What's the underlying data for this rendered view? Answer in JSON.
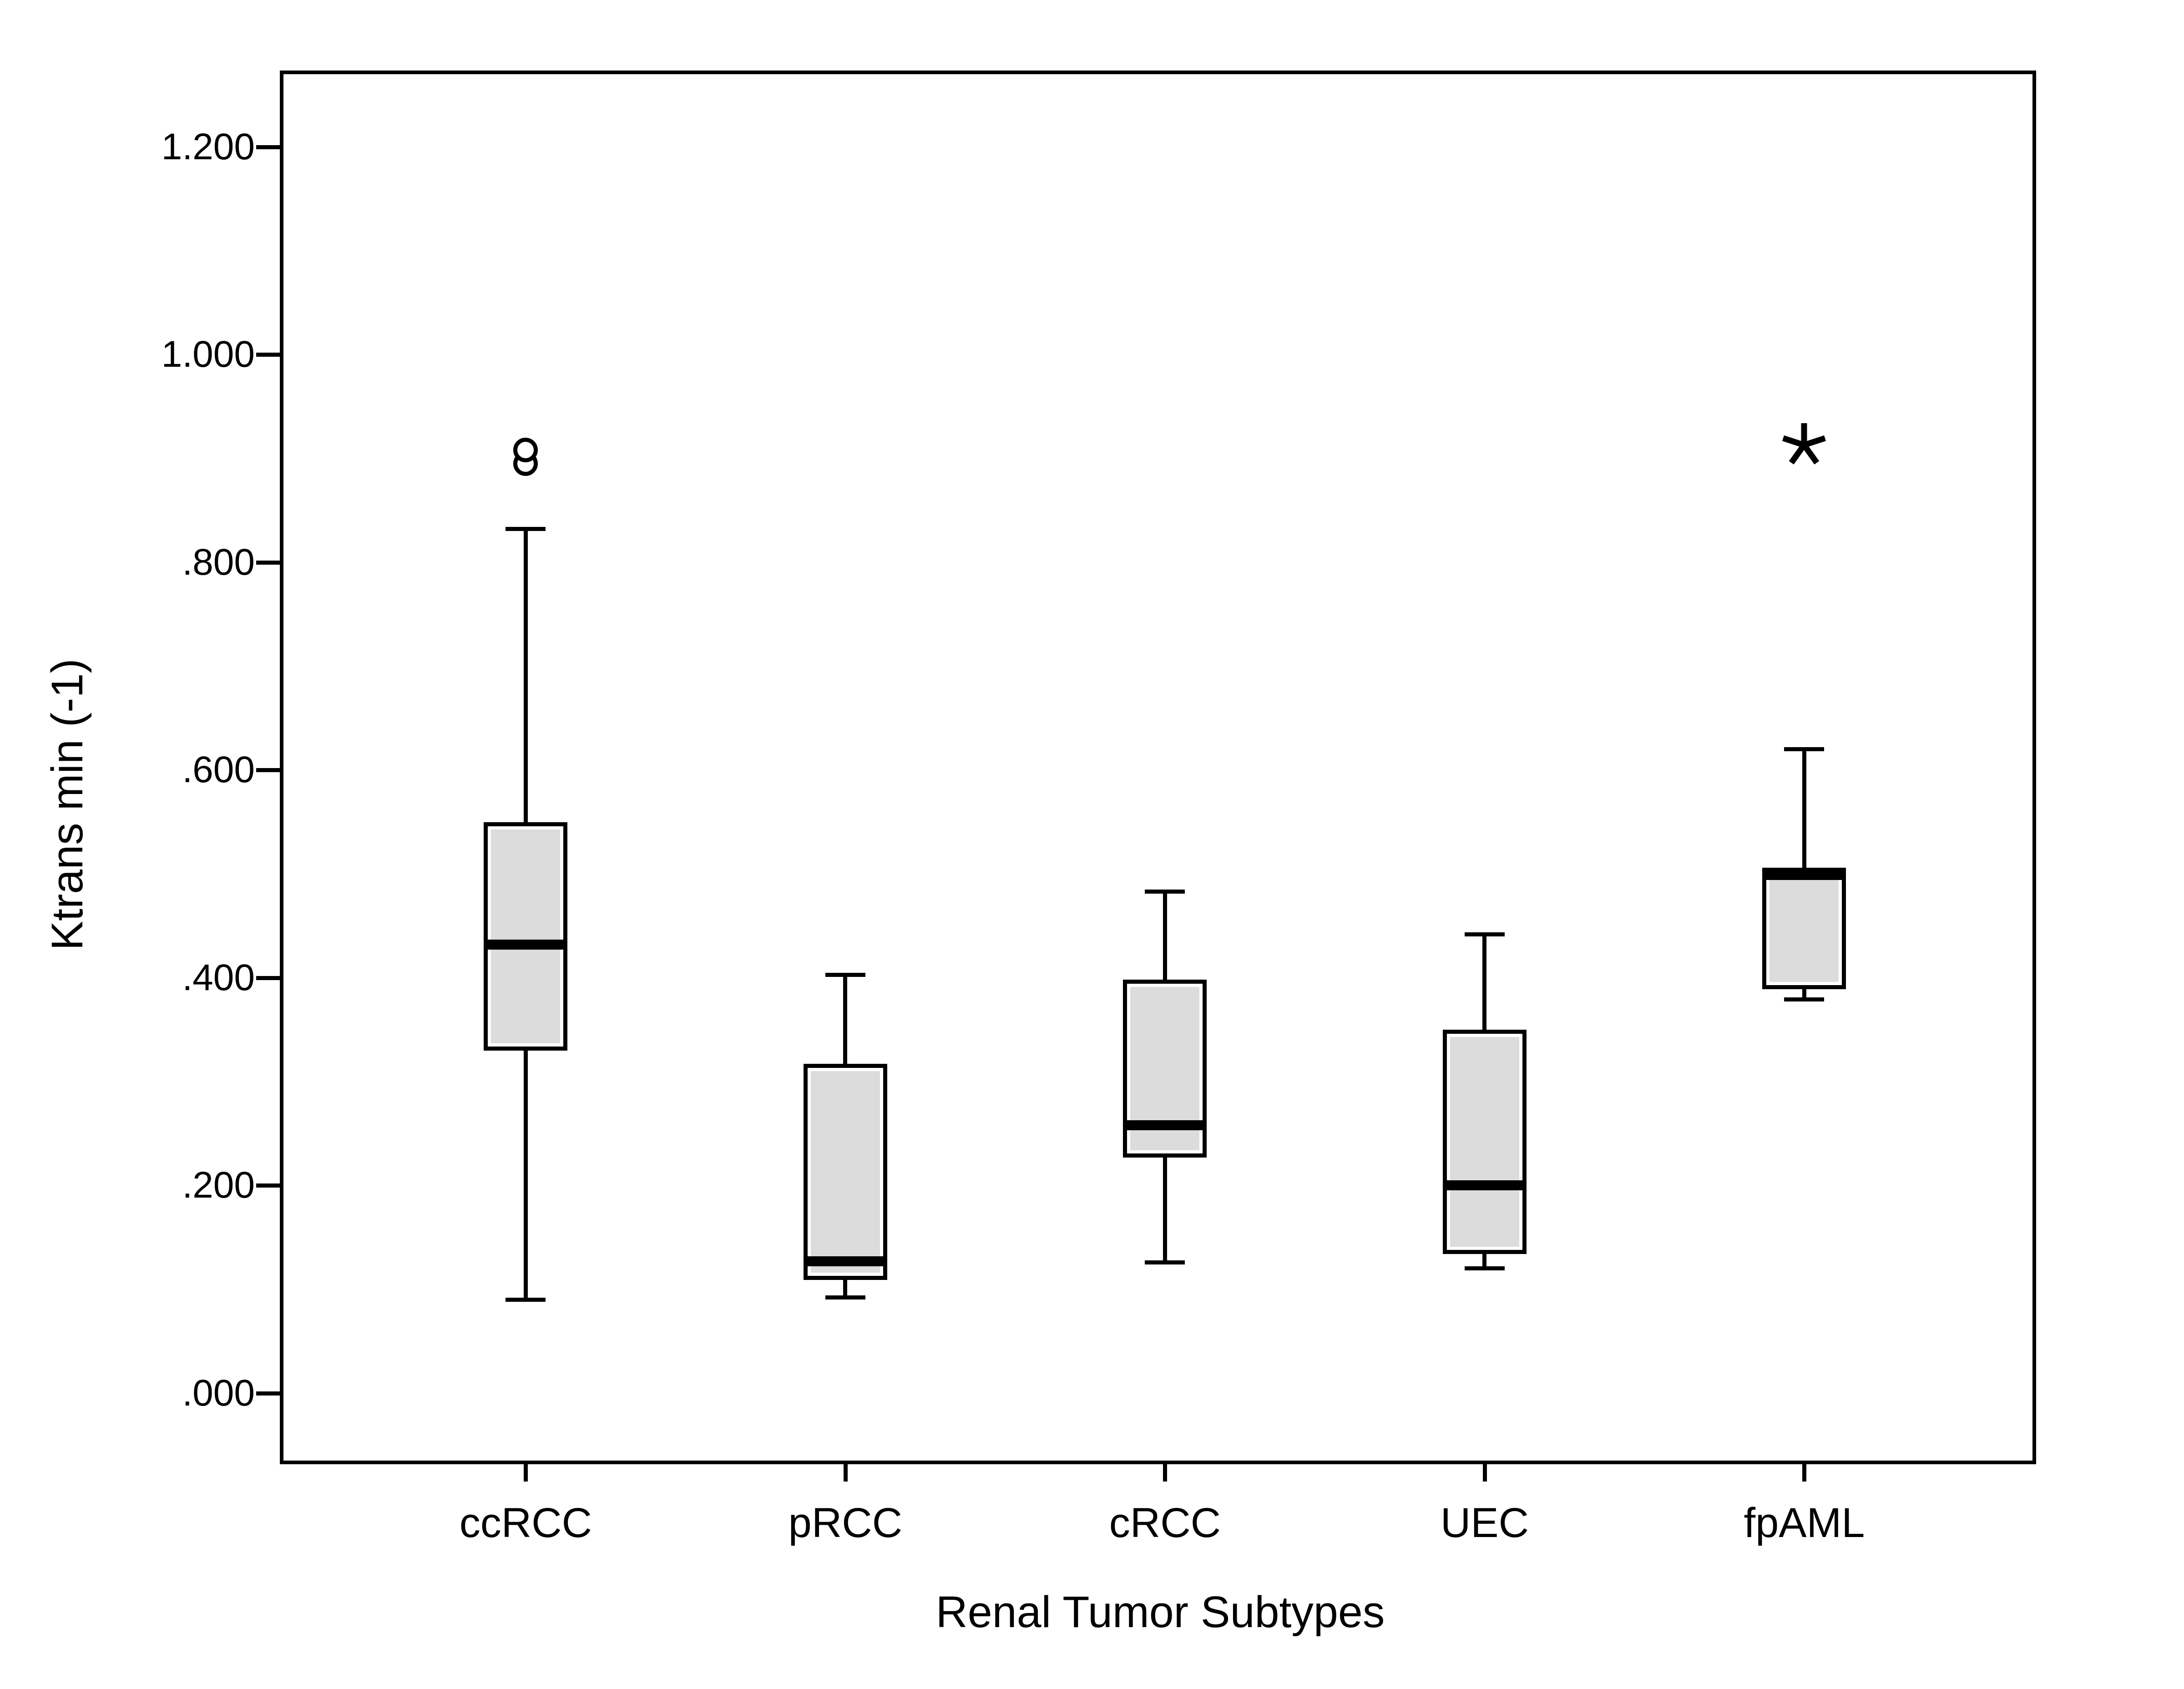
{
  "figure": {
    "background": "#ffffff",
    "frame_color": "#000000"
  },
  "chart_data": {
    "type": "boxplot",
    "title": "",
    "xlabel": "Renal Tumor Subtypes",
    "ylabel": "Ktrans min (-1)",
    "ylim": [
      -0.0684,
      1.2736
    ],
    "grid": false,
    "legend": null,
    "yticks": [
      {
        "value": 1.2,
        "label": "1.200"
      },
      {
        "value": 1.0,
        "label": "1.000"
      },
      {
        "value": 0.8,
        "label": ".800"
      },
      {
        "value": 0.6,
        "label": ".600"
      },
      {
        "value": 0.4,
        "label": ".400"
      },
      {
        "value": 0.2,
        "label": ".200"
      },
      {
        "value": 0.0,
        "label": ".000"
      }
    ],
    "categories": [
      "ccRCC",
      "pRCC",
      "cRCC",
      "UEC",
      "fpAML"
    ],
    "boxes": [
      {
        "category": "ccRCC",
        "whisker_low": 0.09,
        "q1": 0.33,
        "median": 0.432,
        "q3": 0.55,
        "whisker_high": 0.832,
        "outliers": [
          0.895,
          0.908
        ],
        "extremes": []
      },
      {
        "category": "pRCC",
        "whisker_low": 0.092,
        "q1": 0.109,
        "median": 0.127,
        "q3": 0.317,
        "whisker_high": 0.403,
        "outliers": [],
        "extremes": []
      },
      {
        "category": "cRCC",
        "whisker_low": 0.126,
        "q1": 0.227,
        "median": 0.258,
        "q3": 0.398,
        "whisker_high": 0.483,
        "outliers": [],
        "extremes": []
      },
      {
        "category": "UEC",
        "whisker_low": 0.12,
        "q1": 0.134,
        "median": 0.2,
        "q3": 0.35,
        "whisker_high": 0.442,
        "outliers": [],
        "extremes": []
      },
      {
        "category": "fpAML",
        "whisker_low": 0.379,
        "q1": 0.389,
        "median": 0.499,
        "q3": 0.506,
        "whisker_high": 0.62,
        "outliers": [],
        "extremes": [
          0.913
        ]
      }
    ],
    "colors": {
      "box_fill": "#dcdcdc",
      "box_inner_outline": "#ffffff",
      "line": "#000000",
      "background": "#ffffff"
    },
    "markers": {
      "outlier": "open-circle",
      "extreme": "asterisk"
    }
  }
}
